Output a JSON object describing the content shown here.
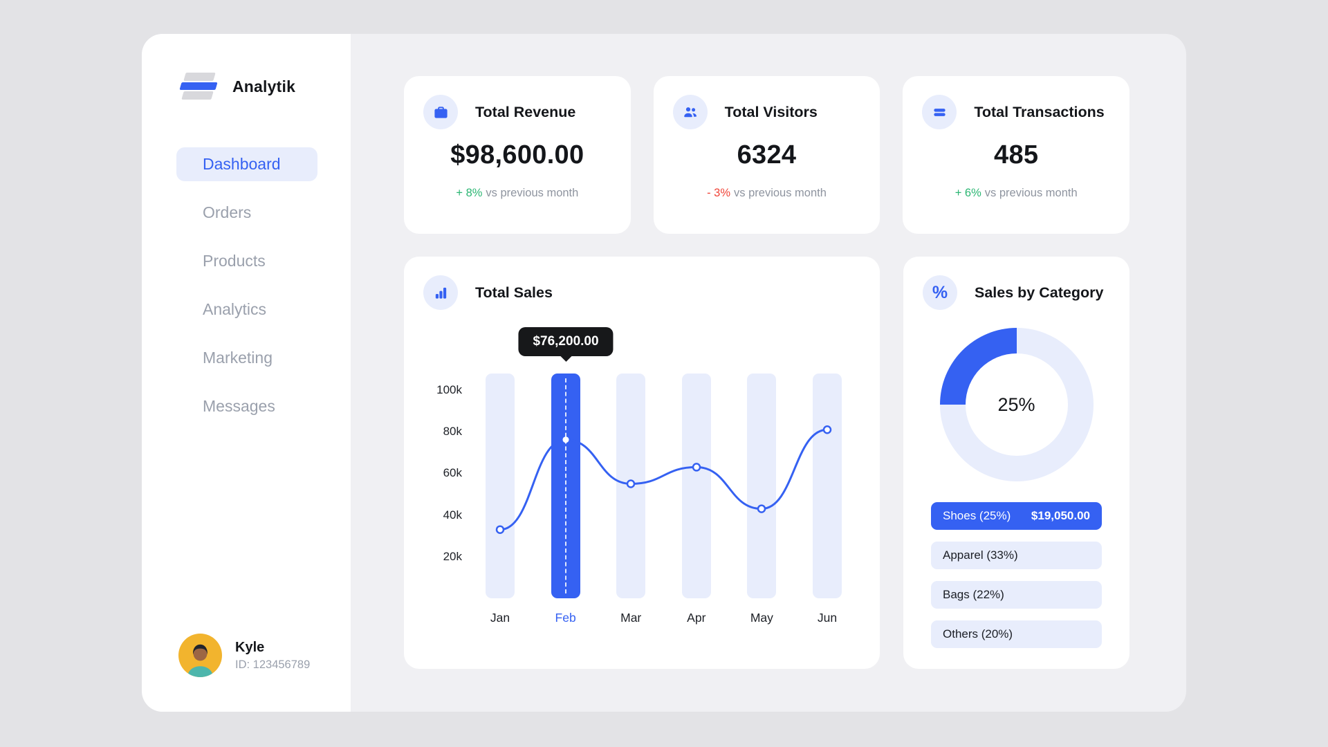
{
  "app": {
    "name": "Analytik"
  },
  "sidebar": {
    "items": [
      {
        "label": "Dashboard",
        "active": true
      },
      {
        "label": "Orders",
        "active": false
      },
      {
        "label": "Products",
        "active": false
      },
      {
        "label": "Analytics",
        "active": false
      },
      {
        "label": "Marketing",
        "active": false
      },
      {
        "label": "Messages",
        "active": false
      }
    ],
    "user": {
      "name": "Kyle",
      "id": "ID: 123456789"
    }
  },
  "stats": [
    {
      "icon": "briefcase-icon",
      "title": "Total Revenue",
      "value": "$98,600.00",
      "delta": "+ 8%",
      "direction": "up",
      "note": "vs previous month"
    },
    {
      "icon": "visitors-icon",
      "title": "Total Visitors",
      "value": "6324",
      "delta": "- 3%",
      "direction": "down",
      "note": "vs previous month"
    },
    {
      "icon": "transactions-icon",
      "title": "Total Transactions",
      "value": "485",
      "delta": "+ 6%",
      "direction": "up",
      "note": "vs previous month"
    }
  ],
  "chart_data": [
    {
      "type": "line",
      "title": "Total Sales",
      "icon": "bar-chart-icon",
      "x": [
        "Jan",
        "Feb",
        "Mar",
        "Apr",
        "May",
        "Jun"
      ],
      "values": [
        33000,
        76200,
        55000,
        63000,
        43000,
        81000
      ],
      "ylim": [
        0,
        108000
      ],
      "yticks": [
        {
          "label": "100k",
          "value": 100000
        },
        {
          "label": "80k",
          "value": 80000
        },
        {
          "label": "60k",
          "value": 60000
        },
        {
          "label": "40k",
          "value": 40000
        },
        {
          "label": "20k",
          "value": 20000
        }
      ],
      "highlight": {
        "index": 1,
        "tooltip": "$76,200.00"
      },
      "grid": false,
      "legend": "none"
    },
    {
      "type": "pie",
      "title": "Sales by Category",
      "icon": "percent-icon",
      "donut": true,
      "center_label": "25%",
      "segments": [
        {
          "label": "Shoes (25%)",
          "value": 25,
          "amount": "$19,050.00",
          "selected": true
        },
        {
          "label": "Apparel (33%)",
          "value": 33,
          "selected": false
        },
        {
          "label": "Bags (22%)",
          "value": 22,
          "selected": false
        },
        {
          "label": "Others (20%)",
          "value": 20,
          "selected": false
        }
      ]
    }
  ],
  "colors": {
    "accent": "#3561f2",
    "accent_light": "#e8edfc",
    "green": "#2bb673",
    "red": "#f04438",
    "tooltip_bg": "#17181a",
    "outer_bg": "#e3e3e6",
    "panel_bg": "#f0f0f3",
    "card_bg": "#ffffff"
  }
}
